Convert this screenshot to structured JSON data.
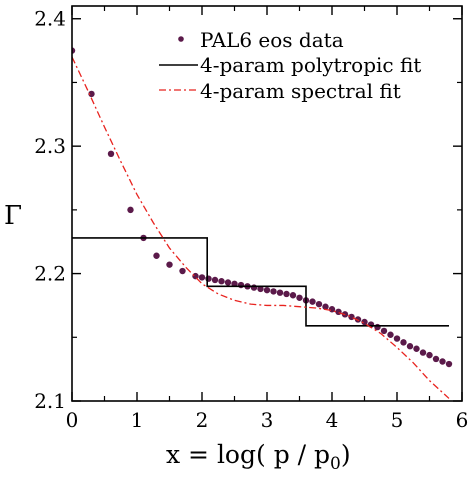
{
  "chart_data": {
    "type": "line",
    "title": "",
    "xlabel": "x = log( p / p",
    "xlabel_sub": "0",
    "xlabel_end": ")",
    "ylabel": "Γ",
    "xlim": [
      0,
      6
    ],
    "ylim": [
      2.1,
      2.41
    ],
    "xticks": [
      0,
      1,
      2,
      3,
      4,
      5,
      6
    ],
    "yticks": [
      2.1,
      2.2,
      2.3,
      2.4
    ],
    "grid": false,
    "legend_position": "top-right",
    "legend": [
      {
        "label": "PAL6 eos data",
        "style": "dots",
        "color": "#5b1a4a"
      },
      {
        "label": "4-param polytropic fit",
        "style": "solid",
        "color": "#000000"
      },
      {
        "label": "4-param spectral fit",
        "style": "dash-dot",
        "color": "#e8231f"
      }
    ],
    "series": [
      {
        "name": "PAL6 eos data",
        "kind": "scatter",
        "color": "#5b1a4a",
        "points": [
          [
            0.0,
            2.375
          ],
          [
            0.3,
            2.341
          ],
          [
            0.6,
            2.294
          ],
          [
            0.9,
            2.25
          ],
          [
            1.1,
            2.228
          ],
          [
            1.3,
            2.214
          ],
          [
            1.5,
            2.207
          ],
          [
            1.7,
            2.202
          ],
          [
            1.9,
            2.198
          ],
          [
            2.0,
            2.197
          ],
          [
            2.1,
            2.196
          ],
          [
            2.2,
            2.195
          ],
          [
            2.3,
            2.194
          ],
          [
            2.4,
            2.193
          ],
          [
            2.5,
            2.192
          ],
          [
            2.6,
            2.191
          ],
          [
            2.7,
            2.19
          ],
          [
            2.8,
            2.189
          ],
          [
            2.9,
            2.188
          ],
          [
            3.0,
            2.187
          ],
          [
            3.1,
            2.186
          ],
          [
            3.2,
            2.185
          ],
          [
            3.3,
            2.184
          ],
          [
            3.4,
            2.183
          ],
          [
            3.5,
            2.181
          ],
          [
            3.6,
            2.179
          ],
          [
            3.7,
            2.178
          ],
          [
            3.8,
            2.176
          ],
          [
            3.9,
            2.174
          ],
          [
            4.0,
            2.172
          ],
          [
            4.1,
            2.17
          ],
          [
            4.2,
            2.168
          ],
          [
            4.3,
            2.166
          ],
          [
            4.4,
            2.164
          ],
          [
            4.5,
            2.162
          ],
          [
            4.6,
            2.16
          ],
          [
            4.7,
            2.158
          ],
          [
            4.8,
            2.155
          ],
          [
            4.9,
            2.152
          ],
          [
            5.0,
            2.149
          ],
          [
            5.1,
            2.146
          ],
          [
            5.2,
            2.143
          ],
          [
            5.3,
            2.141
          ],
          [
            5.4,
            2.138
          ],
          [
            5.5,
            2.136
          ],
          [
            5.6,
            2.133
          ],
          [
            5.7,
            2.131
          ],
          [
            5.8,
            2.129
          ]
        ]
      },
      {
        "name": "4-param polytropic fit",
        "kind": "step",
        "color": "#000000",
        "points": [
          [
            0.0,
            2.228
          ],
          [
            2.08,
            2.228
          ],
          [
            2.08,
            2.19
          ],
          [
            3.6,
            2.19
          ],
          [
            3.6,
            2.159
          ],
          [
            5.8,
            2.159
          ]
        ]
      },
      {
        "name": "4-param spectral fit",
        "kind": "line",
        "color": "#e8231f",
        "points": [
          [
            0.0,
            2.37
          ],
          [
            0.25,
            2.343
          ],
          [
            0.5,
            2.315
          ],
          [
            0.75,
            2.288
          ],
          [
            1.0,
            2.262
          ],
          [
            1.25,
            2.24
          ],
          [
            1.5,
            2.22
          ],
          [
            1.75,
            2.205
          ],
          [
            2.0,
            2.192
          ],
          [
            2.25,
            2.184
          ],
          [
            2.5,
            2.179
          ],
          [
            2.75,
            2.176
          ],
          [
            3.0,
            2.175
          ],
          [
            3.25,
            2.175
          ],
          [
            3.5,
            2.174
          ],
          [
            3.75,
            2.173
          ],
          [
            4.0,
            2.171
          ],
          [
            4.25,
            2.167
          ],
          [
            4.5,
            2.161
          ],
          [
            4.75,
            2.153
          ],
          [
            5.0,
            2.142
          ],
          [
            5.25,
            2.13
          ],
          [
            5.5,
            2.116
          ],
          [
            5.8,
            2.102
          ]
        ]
      }
    ]
  }
}
